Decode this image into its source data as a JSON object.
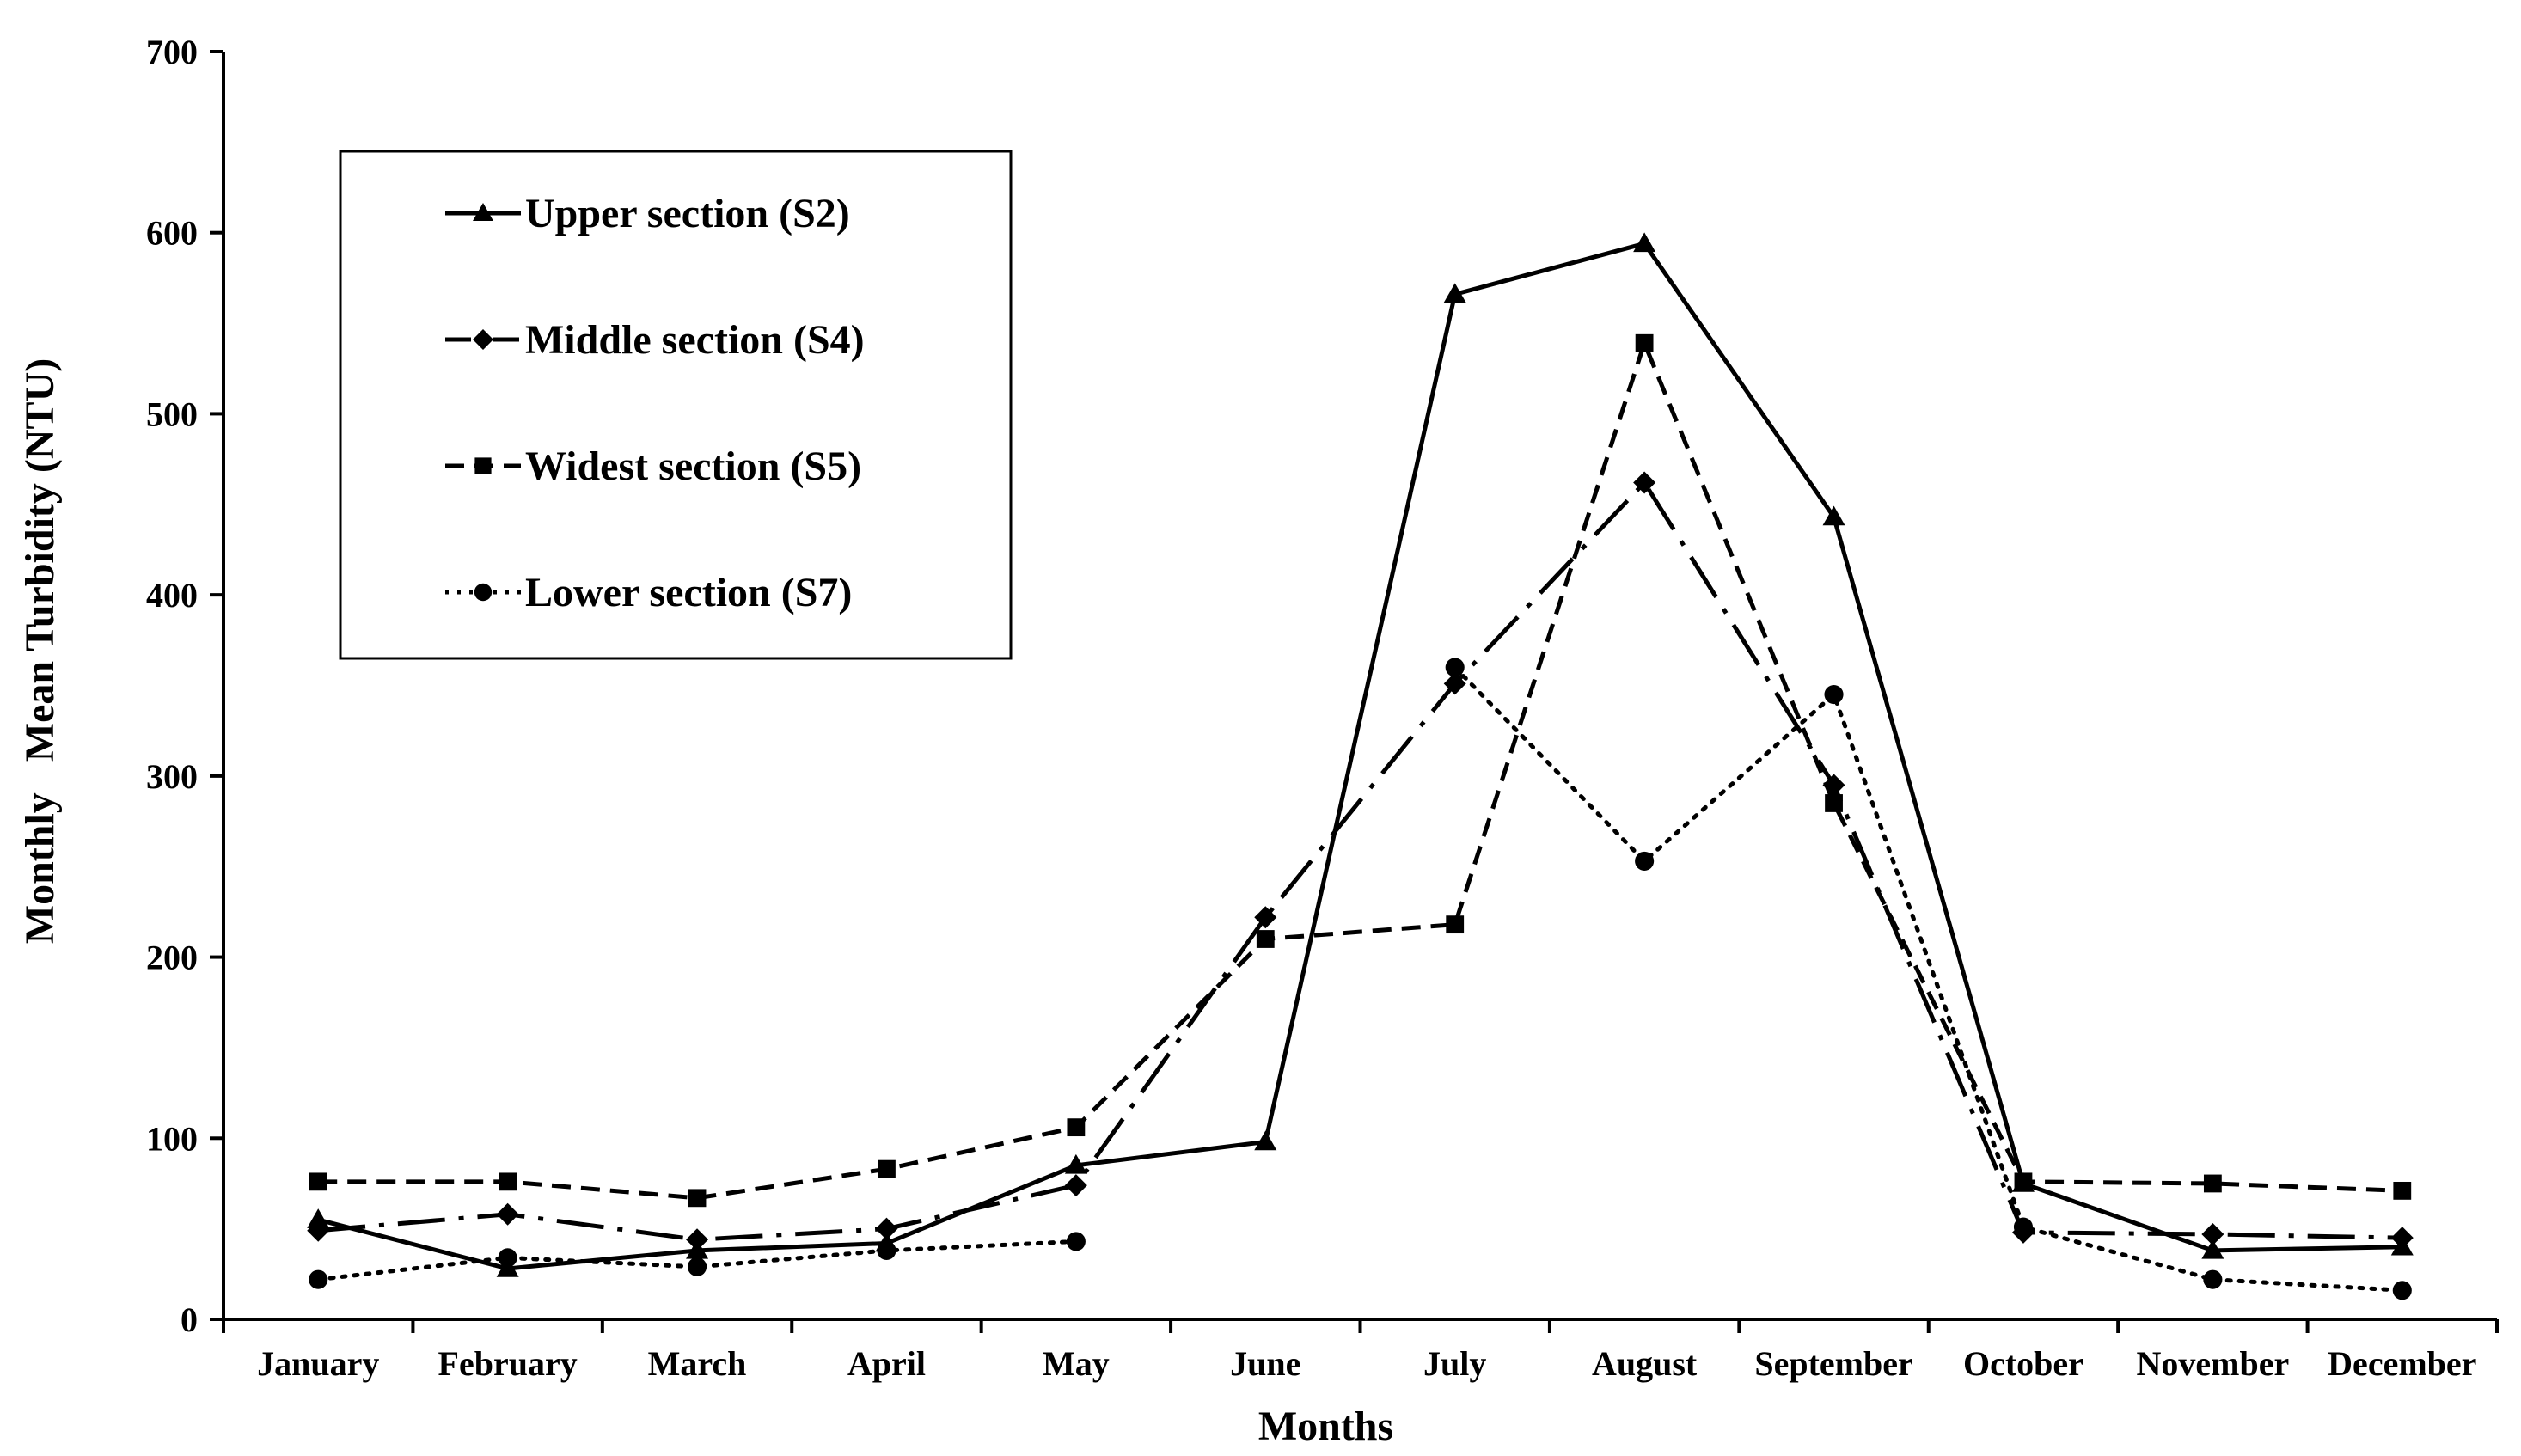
{
  "chart_data": {
    "type": "line",
    "title": "",
    "xlabel": "Months",
    "ylabel": "Monthly   Mean Turbidity (NTU)",
    "ylim": [
      0,
      700
    ],
    "yticks": [
      0,
      100,
      200,
      300,
      400,
      500,
      600,
      700
    ],
    "grid": false,
    "legend_position": "top-left",
    "categories": [
      "January",
      "February",
      "March",
      "April",
      "May",
      "June",
      "July",
      "August",
      "September",
      "October",
      "November",
      "December"
    ],
    "series": [
      {
        "name": "Upper section (S2)",
        "marker": "triangle",
        "dash": "solid",
        "color": "#000000",
        "values": [
          55,
          28,
          38,
          42,
          85,
          98,
          566,
          594,
          443,
          75,
          38,
          40
        ]
      },
      {
        "name": "Middle section (S4)",
        "marker": "diamond",
        "dash": "longdashdot",
        "color": "#000000",
        "values": [
          49,
          58,
          44,
          50,
          74,
          222,
          351,
          462,
          295,
          48,
          47,
          45
        ]
      },
      {
        "name": "Widest section (S5)",
        "marker": "square",
        "dash": "dashed",
        "color": "#000000",
        "values": [
          76,
          76,
          67,
          83,
          106,
          210,
          218,
          539,
          285,
          76,
          75,
          71
        ]
      },
      {
        "name": "Lower section (S7)",
        "marker": "circle",
        "dash": "dotted",
        "color": "#000000",
        "values": [
          22,
          34,
          29,
          38,
          43,
          null,
          360,
          253,
          345,
          51,
          22,
          16
        ]
      }
    ],
    "segments_note": "Lower section (S7) line is broken between May and June"
  }
}
